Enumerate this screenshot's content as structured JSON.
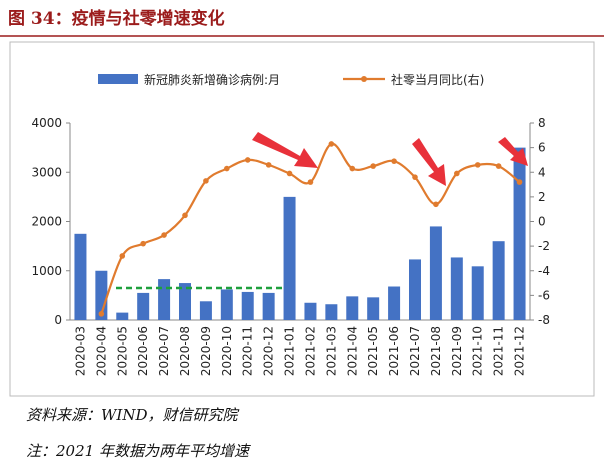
{
  "title": "图 34：疫情与社零增速变化",
  "chart_data": {
    "type": "bar_line",
    "categories": [
      "2020-03",
      "2020-04",
      "2020-05",
      "2020-06",
      "2020-07",
      "2020-08",
      "2020-09",
      "2020-10",
      "2020-11",
      "2020-12",
      "2021-01",
      "2021-02",
      "2021-03",
      "2021-04",
      "2021-05",
      "2021-06",
      "2021-07",
      "2021-08",
      "2021-09",
      "2021-10",
      "2021-11",
      "2021-12"
    ],
    "series": [
      {
        "name": "新冠肺炎新增确诊病例:月",
        "color": "#4472c4",
        "values": [
          1750,
          1000,
          150,
          550,
          830,
          750,
          380,
          620,
          570,
          550,
          2500,
          350,
          320,
          480,
          460,
          680,
          1230,
          1900,
          1270,
          1090,
          1600,
          3500
        ]
      },
      {
        "name": "社零当月同比(右)",
        "color": "#e07b2e",
        "axis": "y2",
        "values": [
          null,
          -7.5,
          -2.8,
          -1.8,
          -1.1,
          0.5,
          3.3,
          4.3,
          5.0,
          4.6,
          3.9,
          3.2,
          6.3,
          4.3,
          4.5,
          4.9,
          3.6,
          1.4,
          3.9,
          4.6,
          4.5,
          3.2
        ]
      }
    ],
    "ylim": [
      0,
      4000
    ],
    "yticks": [
      0,
      1000,
      2000,
      3000,
      4000
    ],
    "y2lim": [
      -8,
      8
    ],
    "y2ticks": [
      -8,
      -6,
      -4,
      -2,
      0,
      2,
      4,
      6,
      8
    ]
  },
  "source": "资料来源：WIND，财信研究院",
  "note": "注：2021 年数据为两年平均增速"
}
